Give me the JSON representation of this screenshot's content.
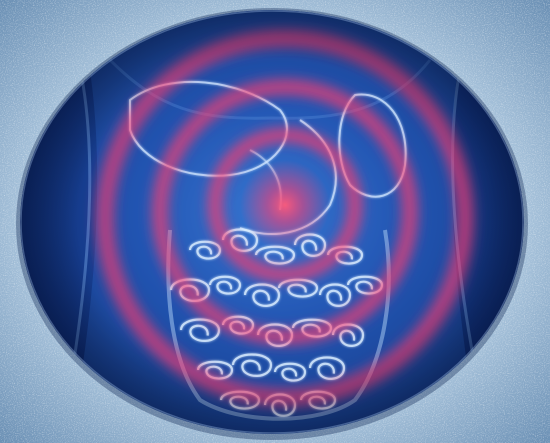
{
  "scene": {
    "subject": "abdominal-pain-illustration",
    "colors": {
      "frame_light": "#c9dcea",
      "frame_mid": "#8fb1cf",
      "frame_dark": "#5f86ad",
      "oval_deep": "#08205e",
      "oval_mid": "#1d4ba6",
      "oval_light": "#3f7ed6",
      "organ_line": "#cfe6ff",
      "pain_red": "#ff3a6e",
      "pain_core": "#ff5a7a"
    }
  }
}
